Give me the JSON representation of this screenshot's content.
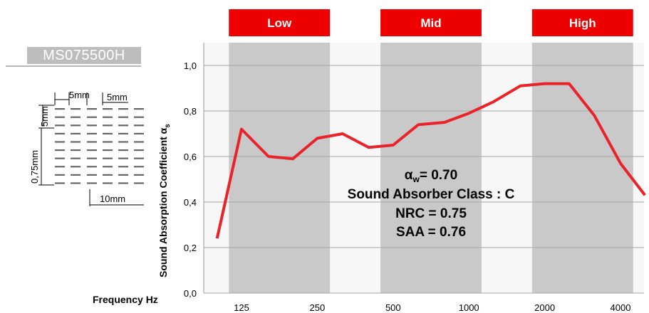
{
  "product": {
    "code": "MS075500H"
  },
  "pattern": {
    "dims": {
      "top_width": "5mm",
      "top_gap": "5mm",
      "left_height": "5mm",
      "left_pitch": "0,75mm",
      "bottom_width": "10mm"
    }
  },
  "chart_data": {
    "type": "line",
    "title": "",
    "xlabel": "Frequency Hz",
    "ylabel_main": "Sound Absorption Coefficient α",
    "ylabel_sub": "s",
    "ylim": [
      0,
      1.1
    ],
    "yticks": [
      "0,0",
      "0,2",
      "0,4",
      "0,6",
      "0,8",
      "1,0"
    ],
    "ytick_values": [
      0,
      0.2,
      0.4,
      0.6,
      0.8,
      1.0
    ],
    "grid": true,
    "bands": [
      {
        "label": "Low",
        "from": 125,
        "to": 250
      },
      {
        "label": "Mid",
        "from": 500,
        "to": 1000
      },
      {
        "label": "High",
        "from": 2000,
        "to": 4000
      }
    ],
    "x_tick_labels": [
      "125",
      "250",
      "500",
      "1000",
      "2000",
      "4000"
    ],
    "x": [
      100,
      125,
      160,
      200,
      250,
      315,
      400,
      500,
      630,
      800,
      1000,
      1250,
      1600,
      2000,
      2500,
      3150,
      4000,
      5000
    ],
    "series": [
      {
        "values": [
          0.24,
          0.72,
          0.6,
          0.59,
          0.68,
          0.7,
          0.64,
          0.65,
          0.74,
          0.75,
          0.79,
          0.84,
          0.91,
          0.92,
          0.92,
          0.78,
          0.57,
          0.43
        ],
        "color": "#e8232a"
      }
    ],
    "annotations": {
      "alpha_prefix": "α",
      "alpha_sub": "w",
      "alpha_value": "= 0.70",
      "line2": "Sound Absorber Class : C",
      "line3": "NRC = 0.75",
      "line4": "SAA = 0.76"
    }
  },
  "colors": {
    "band_header": "#ee0000",
    "band_fill": "#c9c9c9",
    "line": "#e8232a",
    "plot_bg": "#f7f7f7"
  }
}
